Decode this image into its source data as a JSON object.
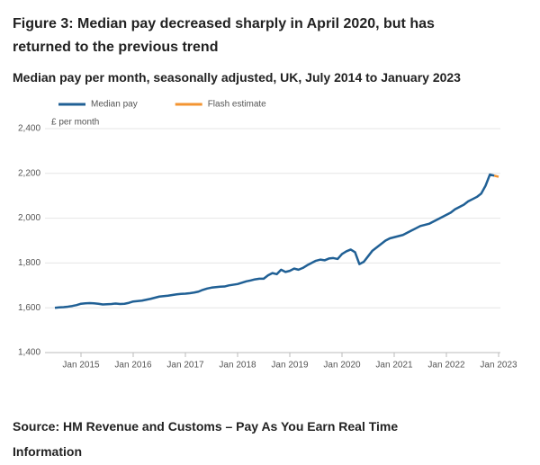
{
  "chart_data": {
    "type": "line",
    "title": "Figure 3: Median pay decreased sharply in April 2020, but has returned to the previous trend",
    "subtitle": "Median pay per month, seasonally adjusted, UK, July 2014 to January 2023",
    "y_label": "£ per month",
    "source": "Source: HM Revenue and Customs – Pay As You Earn Real Time Information",
    "x": [
      "2014-07",
      "2014-08",
      "2014-09",
      "2014-10",
      "2014-11",
      "2014-12",
      "2015-01",
      "2015-02",
      "2015-03",
      "2015-04",
      "2015-05",
      "2015-06",
      "2015-07",
      "2015-08",
      "2015-09",
      "2015-10",
      "2015-11",
      "2015-12",
      "2016-01",
      "2016-02",
      "2016-03",
      "2016-04",
      "2016-05",
      "2016-06",
      "2016-07",
      "2016-08",
      "2016-09",
      "2016-10",
      "2016-11",
      "2016-12",
      "2017-01",
      "2017-02",
      "2017-03",
      "2017-04",
      "2017-05",
      "2017-06",
      "2017-07",
      "2017-08",
      "2017-09",
      "2017-10",
      "2017-11",
      "2017-12",
      "2018-01",
      "2018-02",
      "2018-03",
      "2018-04",
      "2018-05",
      "2018-06",
      "2018-07",
      "2018-08",
      "2018-09",
      "2018-10",
      "2018-11",
      "2018-12",
      "2019-01",
      "2019-02",
      "2019-03",
      "2019-04",
      "2019-05",
      "2019-06",
      "2019-07",
      "2019-08",
      "2019-09",
      "2019-10",
      "2019-11",
      "2019-12",
      "2020-01",
      "2020-02",
      "2020-03",
      "2020-04",
      "2020-05",
      "2020-06",
      "2020-07",
      "2020-08",
      "2020-09",
      "2020-10",
      "2020-11",
      "2020-12",
      "2021-01",
      "2021-02",
      "2021-03",
      "2021-04",
      "2021-05",
      "2021-06",
      "2021-07",
      "2021-08",
      "2021-09",
      "2021-10",
      "2021-11",
      "2021-12",
      "2022-01",
      "2022-02",
      "2022-03",
      "2022-04",
      "2022-05",
      "2022-06",
      "2022-07",
      "2022-08",
      "2022-09",
      "2022-10",
      "2022-11",
      "2022-12",
      "2023-01"
    ],
    "series": [
      {
        "name": "Median pay",
        "color": "#206095",
        "values": [
          1600,
          1602,
          1603,
          1605,
          1608,
          1612,
          1618,
          1620,
          1621,
          1620,
          1618,
          1615,
          1616,
          1617,
          1619,
          1617,
          1618,
          1622,
          1628,
          1630,
          1632,
          1636,
          1640,
          1645,
          1650,
          1652,
          1654,
          1657,
          1660,
          1662,
          1663,
          1665,
          1668,
          1672,
          1680,
          1686,
          1690,
          1692,
          1694,
          1695,
          1700,
          1703,
          1706,
          1712,
          1718,
          1722,
          1727,
          1730,
          1730,
          1745,
          1755,
          1750,
          1770,
          1760,
          1765,
          1775,
          1770,
          1778,
          1790,
          1800,
          1810,
          1815,
          1812,
          1820,
          1822,
          1818,
          1840,
          1852,
          1860,
          1848,
          1795,
          1805,
          1830,
          1855,
          1870,
          1885,
          1900,
          1910,
          1915,
          1920,
          1925,
          1935,
          1945,
          1955,
          1965,
          1970,
          1975,
          1985,
          1995,
          2005,
          2015,
          2025,
          2040,
          2050,
          2060,
          2075,
          2085,
          2095,
          2110,
          2145,
          2195,
          2190,
          null
        ]
      },
      {
        "name": "Flash estimate",
        "color": "#f39431",
        "values": [
          null,
          null,
          null,
          null,
          null,
          null,
          null,
          null,
          null,
          null,
          null,
          null,
          null,
          null,
          null,
          null,
          null,
          null,
          null,
          null,
          null,
          null,
          null,
          null,
          null,
          null,
          null,
          null,
          null,
          null,
          null,
          null,
          null,
          null,
          null,
          null,
          null,
          null,
          null,
          null,
          null,
          null,
          null,
          null,
          null,
          null,
          null,
          null,
          null,
          null,
          null,
          null,
          null,
          null,
          null,
          null,
          null,
          null,
          null,
          null,
          null,
          null,
          null,
          null,
          null,
          null,
          null,
          null,
          null,
          null,
          null,
          null,
          null,
          null,
          null,
          null,
          null,
          null,
          null,
          null,
          null,
          null,
          null,
          null,
          null,
          null,
          null,
          null,
          null,
          null,
          null,
          null,
          null,
          null,
          null,
          null,
          null,
          null,
          null,
          null,
          null,
          2190,
          2185
        ]
      }
    ],
    "ylim": [
      1400,
      2400
    ],
    "yticks": [
      {
        "value": 1400,
        "label": "1,400"
      },
      {
        "value": 1600,
        "label": "1,600"
      },
      {
        "value": 1800,
        "label": "1,800"
      },
      {
        "value": 2000,
        "label": "2,000"
      },
      {
        "value": 2200,
        "label": "2,200"
      },
      {
        "value": 2400,
        "label": "2,400"
      }
    ],
    "xticks": [
      {
        "value": "2015-01",
        "label": "Jan 2015"
      },
      {
        "value": "2016-01",
        "label": "Jan 2016"
      },
      {
        "value": "2017-01",
        "label": "Jan 2017"
      },
      {
        "value": "2018-01",
        "label": "Jan 2018"
      },
      {
        "value": "2019-01",
        "label": "Jan 2019"
      },
      {
        "value": "2020-01",
        "label": "Jan 2020"
      },
      {
        "value": "2021-01",
        "label": "Jan 2021"
      },
      {
        "value": "2022-01",
        "label": "Jan 2022"
      },
      {
        "value": "2023-01",
        "label": "Jan 2023"
      }
    ],
    "grid": true,
    "legend": "top"
  }
}
